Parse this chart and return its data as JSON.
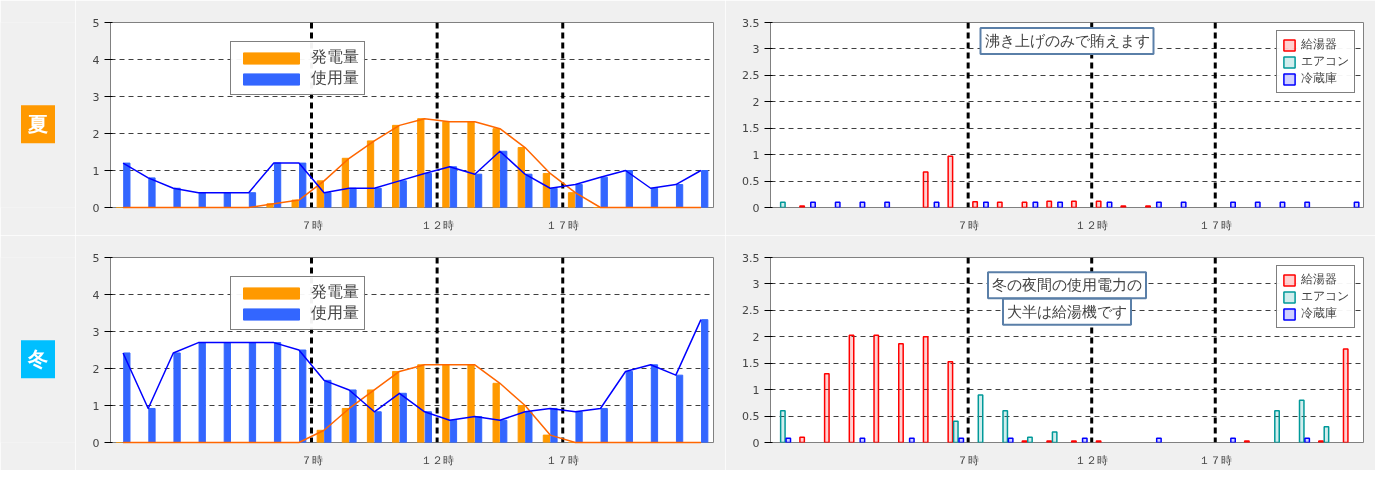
{
  "chart_data": [
    {
      "type": "bar",
      "title": "夏",
      "x": [
        -0.5,
        0.5,
        1.5,
        2.5,
        3.5,
        4.5,
        5.5,
        6.5,
        7.5,
        8.5,
        9.5,
        10.5,
        11.5,
        12.5,
        13.5,
        14.5,
        15.5,
        16.5,
        17.5,
        18.5,
        19.5,
        20.5,
        21.5,
        22.5
      ],
      "xlim": [
        -1,
        23
      ],
      "xticks": [
        {
          "value": 7,
          "label": "７時"
        },
        {
          "value": 12,
          "label": "１２時"
        },
        {
          "value": 17,
          "label": "１７時"
        }
      ],
      "ylim": [
        0,
        5
      ],
      "yticks": [
        0,
        1,
        2,
        3,
        4,
        5
      ],
      "grid": "y",
      "legend": "top",
      "ref_lines": [
        {
          "axis": "x",
          "value": 7,
          "color": "#000000",
          "line_style": "dashed"
        },
        {
          "axis": "x",
          "value": 12,
          "color": "#000000",
          "line_style": "dashed"
        },
        {
          "axis": "x",
          "value": 17,
          "color": "#000000",
          "line_style": "dashed"
        }
      ],
      "series": [
        {
          "name": "発電量",
          "color": "#ff9900",
          "values": [
            0,
            0,
            0,
            0,
            0,
            0,
            0.1,
            0.2,
            0.72,
            1.33,
            1.8,
            2.22,
            2.4,
            2.32,
            2.32,
            2.13,
            1.62,
            0.92,
            0.4,
            0,
            0,
            0,
            0,
            0
          ]
        },
        {
          "name": "使用量",
          "color": "#3366ff",
          "values": [
            1.2,
            0.8,
            0.52,
            0.4,
            0.4,
            0.4,
            1.2,
            1.2,
            0.4,
            0.52,
            0.52,
            0.72,
            0.92,
            1.1,
            0.9,
            1.52,
            0.9,
            0.52,
            0.62,
            0.82,
            1.0,
            0.52,
            0.62,
            1.0
          ]
        },
        {
          "type": "line",
          "color": "#ff6600",
          "values": [
            0,
            0,
            0,
            0,
            0,
            0,
            0.1,
            0.2,
            0.72,
            1.33,
            1.8,
            2.22,
            2.4,
            2.32,
            2.32,
            2.13,
            1.62,
            0.92,
            0.4,
            0,
            0,
            0,
            0,
            0
          ]
        },
        {
          "type": "line",
          "color": "#0000ff",
          "values": [
            1.2,
            0.8,
            0.52,
            0.4,
            0.4,
            0.4,
            1.2,
            1.2,
            0.4,
            0.52,
            0.52,
            0.72,
            0.92,
            1.1,
            0.9,
            1.52,
            0.9,
            0.52,
            0.62,
            0.82,
            1.0,
            0.52,
            0.62,
            1.0
          ]
        }
      ]
    },
    {
      "type": "bar",
      "x": [
        -0.5,
        0.5,
        1.5,
        2.5,
        3.5,
        4.5,
        5.5,
        6.5,
        7.5,
        8.5,
        9.5,
        10.5,
        11.5,
        12.5,
        13.5,
        14.5,
        15.5,
        16.5,
        17.5,
        18.5,
        19.5,
        20.5,
        21.5,
        22.5
      ],
      "xlim": [
        -1,
        23
      ],
      "xticks": [
        {
          "value": 7,
          "label": "７時"
        },
        {
          "value": 12,
          "label": "１２時"
        },
        {
          "value": 17,
          "label": "１７時"
        }
      ],
      "ylim": [
        0,
        3.5
      ],
      "yticks": [
        0,
        0.5,
        1,
        1.5,
        2,
        2.5,
        3,
        3.5
      ],
      "grid": "y",
      "legend": "top right",
      "annotations": [
        "沸き上げのみで賄えます"
      ],
      "ref_lines": [
        {
          "axis": "x",
          "value": 7,
          "color": "#000000",
          "line_style": "dashed"
        },
        {
          "axis": "x",
          "value": 12,
          "color": "#000000",
          "line_style": "dashed"
        },
        {
          "axis": "x",
          "value": 17,
          "color": "#000000",
          "line_style": "dashed"
        }
      ],
      "series": [
        {
          "name": "給湯器",
          "color": "#ff0000",
          "values": [
            null,
            0.03,
            null,
            null,
            null,
            null,
            0.67,
            0.97,
            0.11,
            0.1,
            0.1,
            0.12,
            0.12,
            0.12,
            0.03,
            0.03,
            null,
            null,
            null,
            null,
            null,
            null,
            null,
            null
          ]
        },
        {
          "name": "エアコン",
          "color": "#009999",
          "values": [
            0.1,
            null,
            null,
            null,
            null,
            null,
            null,
            null,
            null,
            null,
            null,
            null,
            null,
            null,
            null,
            null,
            null,
            null,
            null,
            null,
            null,
            null,
            null,
            null
          ]
        },
        {
          "name": "冷蔵庫",
          "color": "#0000ff",
          "values": [
            null,
            0.1,
            0.1,
            0.1,
            0.1,
            null,
            0.1,
            null,
            0.1,
            null,
            0.1,
            0.1,
            null,
            0.1,
            null,
            0.1,
            0.1,
            null,
            0.1,
            0.1,
            0.1,
            0.1,
            null,
            0.1
          ]
        }
      ]
    },
    {
      "type": "bar",
      "title": "冬",
      "x": [
        -0.5,
        0.5,
        1.5,
        2.5,
        3.5,
        4.5,
        5.5,
        6.5,
        7.5,
        8.5,
        9.5,
        10.5,
        11.5,
        12.5,
        13.5,
        14.5,
        15.5,
        16.5,
        17.5,
        18.5,
        19.5,
        20.5,
        21.5,
        22.5
      ],
      "xlim": [
        -1,
        23
      ],
      "xticks": [
        {
          "value": 7,
          "label": "７時"
        },
        {
          "value": 12,
          "label": "１２時"
        },
        {
          "value": 17,
          "label": "１７時"
        }
      ],
      "ylim": [
        0,
        5
      ],
      "yticks": [
        0,
        1,
        2,
        3,
        4,
        5
      ],
      "grid": "y",
      "legend": "top",
      "ref_lines": [
        {
          "axis": "x",
          "value": 7,
          "color": "#000000",
          "line_style": "dashed"
        },
        {
          "axis": "x",
          "value": 12,
          "color": "#000000",
          "line_style": "dashed"
        },
        {
          "axis": "x",
          "value": 17,
          "color": "#000000",
          "line_style": "dashed"
        }
      ],
      "series": [
        {
          "name": "発電量",
          "color": "#ff9900",
          "values": [
            0,
            0,
            0,
            0,
            0,
            0,
            0,
            0,
            0.33,
            0.92,
            1.42,
            1.92,
            2.1,
            2.1,
            2.1,
            1.6,
            1.0,
            0.2,
            0,
            0,
            0,
            0,
            0,
            0
          ]
        },
        {
          "name": "使用量",
          "color": "#3366ff",
          "values": [
            2.42,
            0.92,
            2.42,
            2.7,
            2.7,
            2.7,
            2.7,
            2.5,
            1.68,
            1.42,
            0.83,
            1.33,
            0.83,
            0.6,
            0.7,
            0.6,
            0.83,
            0.92,
            0.83,
            0.92,
            1.92,
            2.1,
            1.82,
            3.32
          ]
        },
        {
          "type": "line",
          "color": "#ff6600",
          "values": [
            0,
            0,
            0,
            0,
            0,
            0,
            0,
            0,
            0.33,
            0.92,
            1.42,
            1.92,
            2.1,
            2.1,
            2.1,
            1.6,
            1.0,
            0.2,
            0,
            0,
            0,
            0,
            0,
            0
          ]
        },
        {
          "type": "line",
          "color": "#0000ff",
          "values": [
            2.42,
            0.92,
            2.42,
            2.7,
            2.7,
            2.7,
            2.7,
            2.5,
            1.68,
            1.42,
            0.83,
            1.33,
            0.83,
            0.6,
            0.7,
            0.6,
            0.83,
            0.92,
            0.83,
            0.92,
            1.92,
            2.1,
            1.82,
            3.32
          ]
        }
      ]
    },
    {
      "type": "bar",
      "x": [
        -0.5,
        0.5,
        1.5,
        2.5,
        3.5,
        4.5,
        5.5,
        6.5,
        7.5,
        8.5,
        9.5,
        10.5,
        11.5,
        12.5,
        13.5,
        14.5,
        15.5,
        16.5,
        17.5,
        18.5,
        19.5,
        20.5,
        21.5,
        22.5
      ],
      "xlim": [
        -1,
        23
      ],
      "xticks": [
        {
          "value": 7,
          "label": "７時"
        },
        {
          "value": 12,
          "label": "１２時"
        },
        {
          "value": 17,
          "label": "１７時"
        }
      ],
      "ylim": [
        0,
        3.5
      ],
      "yticks": [
        0,
        0.5,
        1,
        1.5,
        2,
        2.5,
        3,
        3.5
      ],
      "grid": "y",
      "legend": "top right",
      "annotations": [
        "冬の夜間の使用電力の",
        "大半は給湯機です"
      ],
      "ref_lines": [
        {
          "axis": "x",
          "value": 7,
          "color": "#000000",
          "line_style": "dashed"
        },
        {
          "axis": "x",
          "value": 12,
          "color": "#000000",
          "line_style": "dashed"
        },
        {
          "axis": "x",
          "value": 17,
          "color": "#000000",
          "line_style": "dashed"
        }
      ],
      "series": [
        {
          "name": "給湯器",
          "color": "#ff0000",
          "values": [
            null,
            0.1,
            1.3,
            2.03,
            2.03,
            1.87,
            2.0,
            1.53,
            null,
            null,
            0.03,
            0.03,
            0.03,
            0.03,
            null,
            null,
            null,
            null,
            null,
            0.03,
            null,
            null,
            0.03,
            1.77
          ]
        },
        {
          "name": "エアコン",
          "color": "#009999",
          "values": [
            0.6,
            null,
            null,
            null,
            null,
            null,
            null,
            0.4,
            0.9,
            0.6,
            0.1,
            0.2,
            null,
            null,
            null,
            null,
            null,
            null,
            null,
            null,
            0.6,
            0.8,
            0.3,
            null
          ]
        },
        {
          "name": "冷蔵庫",
          "color": "#0000ff",
          "values": [
            0.08,
            null,
            null,
            0.08,
            null,
            0.08,
            null,
            0.08,
            null,
            0.08,
            null,
            null,
            0.08,
            null,
            null,
            0.08,
            null,
            null,
            0.08,
            null,
            null,
            0.08,
            null,
            null
          ]
        }
      ]
    }
  ]
}
